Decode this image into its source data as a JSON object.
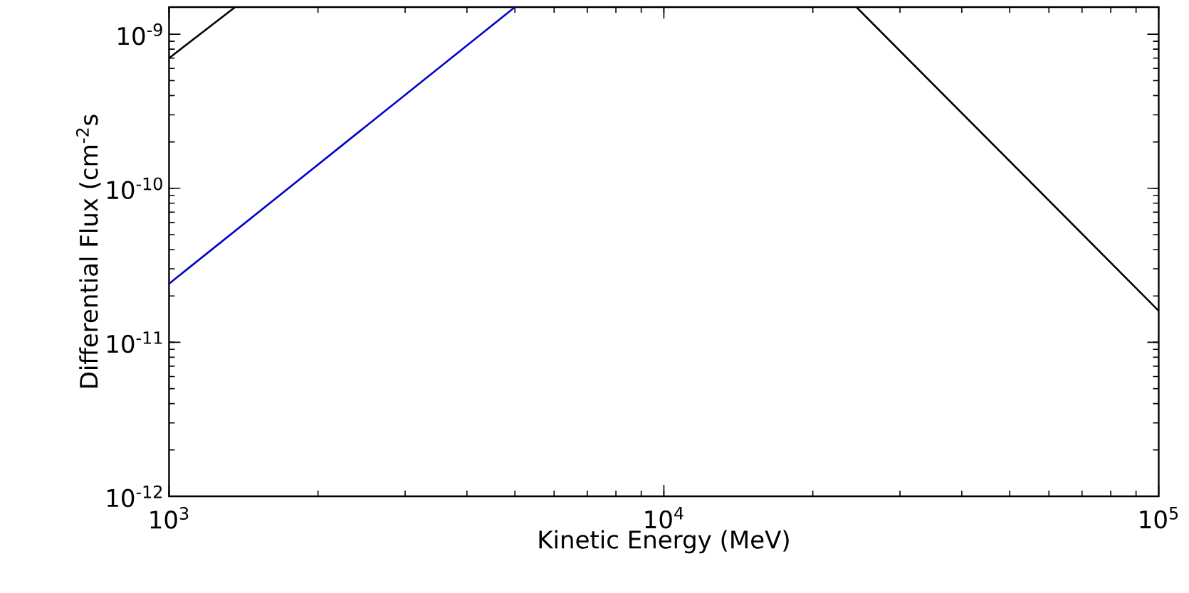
{
  "chart_data": {
    "type": "line",
    "xlabel": "Kinetic Energy (MeV)",
    "ylabel": "Differential Flux (cm$^{-2}$s",
    "log": "xy",
    "xlim": [
      1000,
      100000
    ],
    "ylim": [
      1e-12,
      1.5e-09
    ],
    "xticks": [
      {
        "value": 1000,
        "label": "10$^{3}$"
      },
      {
        "value": 10000,
        "label": "10$^{4}$"
      },
      {
        "value": 100000,
        "label": "10$^{5}$"
      }
    ],
    "yticks": [
      {
        "value": 1e-12,
        "label": "10$^{-12}$"
      },
      {
        "value": 1e-11,
        "label": "10$^{-11}$"
      },
      {
        "value": 1e-10,
        "label": "10$^{-10}$"
      },
      {
        "value": 1e-09,
        "label": "10$^{-9}$"
      }
    ],
    "series": [
      {
        "color": "#000000",
        "x": [
          1000,
          1360
        ],
        "values": [
          7e-10,
          1.5e-09
        ]
      },
      {
        "color": "#0000cc",
        "x": [
          1000,
          5000
        ],
        "values": [
          2.4e-11,
          1.5e-09
        ]
      },
      {
        "color": "#000000",
        "x": [
          24500,
          100000
        ],
        "values": [
          1.5e-09,
          1.6e-11
        ]
      }
    ]
  }
}
